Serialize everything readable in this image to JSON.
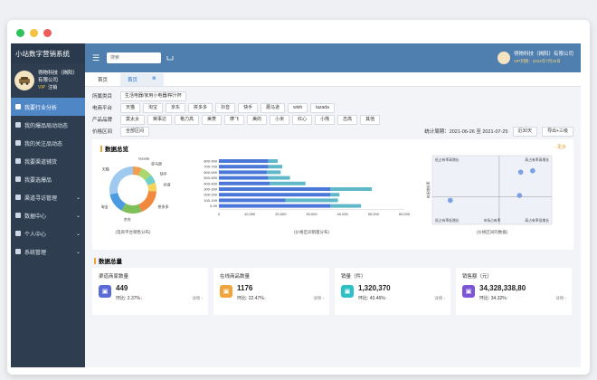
{
  "app": {
    "title": "小站数字营销系统"
  },
  "sidebar": {
    "company": "得物科技（揭阳）有限公司",
    "vip": "VIP",
    "logout": "注销",
    "items": [
      {
        "label": "我要行业分析",
        "active": true,
        "icon": "chart-icon"
      },
      {
        "label": "我的爆品局动动态",
        "icon": "grid-icon"
      },
      {
        "label": "我的关注品动态",
        "icon": "doc-icon"
      },
      {
        "label": "我要渠道铺货",
        "icon": "truck-icon"
      },
      {
        "label": "我要选爆品",
        "icon": "star-icon"
      },
      {
        "label": "渠道寻访管理",
        "icon": "people-icon",
        "expandable": true
      },
      {
        "label": "数据中心",
        "icon": "db-icon",
        "expandable": true
      },
      {
        "label": "个人中心",
        "icon": "user-icon",
        "expandable": true
      },
      {
        "label": "系统管理",
        "icon": "gear-icon",
        "expandable": true
      }
    ]
  },
  "topbar": {
    "search_placeholder": "搜索",
    "company": "得物科技（揭阳）有限公司",
    "vip_expiry": "VIP到期：2022年7月25日"
  },
  "tabs": [
    {
      "label": "首页"
    },
    {
      "label": "首页",
      "active": true,
      "close": "⊗"
    }
  ],
  "filters": {
    "category_label": "所属类目",
    "category_value": "生活电器/家用小电器/榨汁杯",
    "platform_label": "电商平台",
    "platforms": [
      "天猫",
      "淘宝",
      "京东",
      "拼多多",
      "抖音",
      "快手",
      "蘑马逊",
      "wish",
      "lazada"
    ],
    "brand_label": "产品品牌",
    "brands": [
      "莫太太",
      "荣事达",
      "格力高",
      "美菱",
      "摩飞",
      "美的",
      "小米",
      "红心",
      "小熊",
      "志高",
      "其他"
    ],
    "price_label": "价格区间",
    "price_value": "全部区间",
    "period_label": "统计周期：2021-06-26 至 2021-07-25",
    "period_button": "近30天",
    "export": "导出+三级"
  },
  "overview": {
    "title": "数据总览",
    "more": "···更多",
    "donut_caption": "(电商平台销售分布)",
    "bar_caption": "(价格区间销量分布)",
    "quad_caption": "(价格区间的数据)",
    "quad_labels": {
      "tl": "低占有率高增长",
      "tr": "高占有率高增长",
      "bl": "低占有率低增长",
      "br": "高占有率低增长",
      "y_axis": "市场增长率",
      "x_axis": "市场占有率"
    }
  },
  "chart_data": [
    {
      "type": "pie",
      "title": "",
      "labels": [
        "lazada",
        "亚马逊",
        "快手",
        "抖音",
        "拼多多",
        "京东",
        "淘宝",
        "天猫"
      ],
      "values": [
        6,
        8,
        6,
        6,
        18,
        14,
        14,
        28
      ],
      "colors": [
        "#f29e4c",
        "#a9d86e",
        "#6fd0c7",
        "#f5d259",
        "#f0883e",
        "#7fbf5a",
        "#4b9be0",
        "#9fc9ef"
      ]
    },
    {
      "type": "bar",
      "orientation": "horizontal",
      "title": "",
      "categories": [
        "800-999",
        "700-799",
        "600-699",
        "500-599",
        "400-499",
        "300-399",
        "200-299",
        "100-199",
        "0-99"
      ],
      "series": [
        {
          "name": "",
          "values": [
            16000,
            16000,
            15500,
            16000,
            16500,
            36000,
            36000,
            21500,
            36000
          ],
          "color": "#4b78d8"
        },
        {
          "name": "",
          "values": [
            3000,
            4500,
            4500,
            7000,
            11500,
            13500,
            3000,
            17000,
            10000
          ],
          "color": "#5fb8c8"
        }
      ],
      "xlim": [
        0,
        60000
      ],
      "xticks": [
        "0",
        "10,000",
        "20,000",
        "30,000",
        "40,000",
        "50,000",
        "60,000"
      ]
    },
    {
      "type": "scatter",
      "title": "",
      "points": [
        {
          "x": 0.74,
          "y": 0.76
        },
        {
          "x": 0.84,
          "y": 0.78
        },
        {
          "x": 0.73,
          "y": 0.42
        },
        {
          "x": 0.15,
          "y": 0.35
        }
      ],
      "xlim": [
        0,
        1
      ],
      "ylim": [
        0,
        1
      ]
    }
  ],
  "kpi_section_title": "数据总量",
  "kpis": [
    {
      "title": "渠道商家数量",
      "value": "449",
      "ratio": "环比: 2.37%",
      "trend": "↓",
      "detail": "详情 ›",
      "color": "#5a6ad6",
      "icon": "store-icon"
    },
    {
      "title": "在线商品数量",
      "value": "1176",
      "ratio": "环比: 22.47%",
      "trend": "↓",
      "detail": "详情 ›",
      "color": "#f0a43a",
      "icon": "cart-icon"
    },
    {
      "title": "销量（件）",
      "value": "1,320,370",
      "ratio": "环比: 43.46%",
      "trend": "↑",
      "detail": "详情 ›",
      "color": "#2ec0c7",
      "icon": "box-icon"
    },
    {
      "title": "销售额（元）",
      "value": "34,328,338,80",
      "ratio": "环比: 34.32%",
      "trend": "↑",
      "detail": "详情 ›",
      "color": "#7c55d6",
      "icon": "money-icon"
    }
  ],
  "colors": {
    "accent": "#4f86c6",
    "sidebar": "#2e3e50",
    "topbar": "#4f7fae",
    "highlight": "#e8a33b",
    "down": "#e24b4b",
    "up": "#2fa36b"
  }
}
